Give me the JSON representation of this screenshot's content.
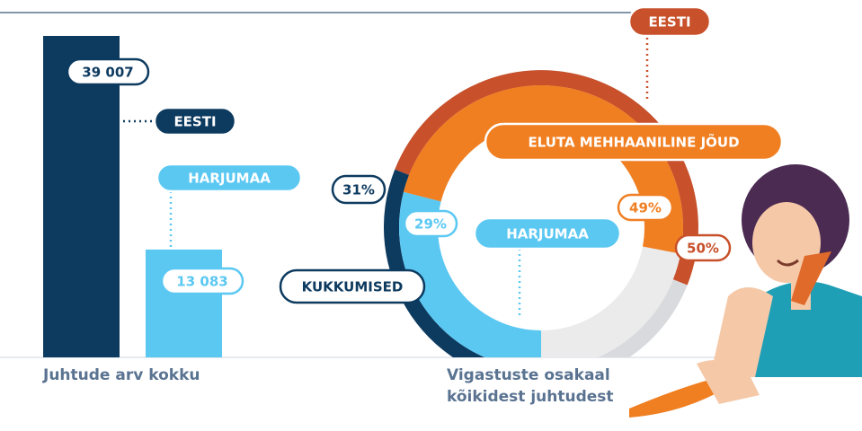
{
  "chart_data": [
    {
      "type": "bar",
      "x_label": "Juhtude arv kokku",
      "categories": [
        "EESTI",
        "HARJUMAA"
      ],
      "values": [
        39007,
        13083
      ],
      "value_labels": [
        "39 007",
        "13 083"
      ],
      "colors": [
        "#0d3a5f",
        "#5bc8f2"
      ]
    },
    {
      "type": "donut",
      "title": "Vigastuste osakaal kõikidest juhtudest",
      "categories": [
        "KUKKUMISED",
        "ELUTA MEHHAANILINE JÕUD"
      ],
      "series": [
        {
          "name": "EESTI",
          "colors": [
            "#0d3a5f",
            "#c8502a"
          ],
          "values": [
            31,
            50
          ],
          "value_labels": [
            "31%",
            "50%"
          ]
        },
        {
          "name": "HARJUMAA",
          "colors": [
            "#5bc8f2",
            "#f07f22"
          ],
          "values": [
            29,
            49
          ],
          "value_labels": [
            "29%",
            "49%"
          ]
        }
      ]
    }
  ]
}
